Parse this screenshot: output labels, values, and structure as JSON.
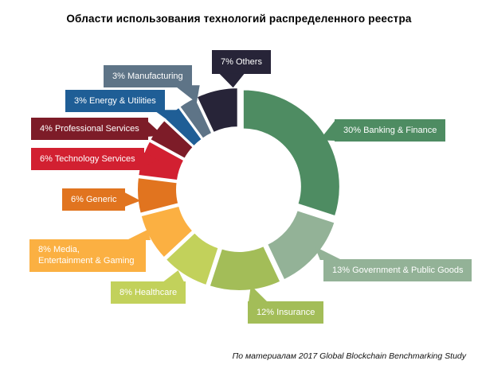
{
  "chart_data": {
    "type": "pie",
    "donut": true,
    "title": "Области использования технологий распределенного реестра",
    "source_note": "По материалам 2017 Global Blockchain Benchmarking Study",
    "unit": "percent",
    "legend_position": "callouts",
    "callout_text_color": "#ffffff",
    "slices": [
      {
        "key": "banking",
        "label": "Banking & Finance",
        "pct": 30,
        "color": "#4e8c62",
        "display": "30% Banking & Finance"
      },
      {
        "key": "government",
        "label": "Government & Public Goods",
        "pct": 13,
        "color": "#93b297",
        "display": "13% Government & Public Goods"
      },
      {
        "key": "insurance",
        "label": "Insurance",
        "pct": 12,
        "color": "#a3bd58",
        "display": "12% Insurance"
      },
      {
        "key": "healthcare",
        "label": "Healthcare",
        "pct": 8,
        "color": "#c2d15b",
        "display": "8% Healthcare"
      },
      {
        "key": "media",
        "label": "Media, Entertainment & Gaming",
        "pct": 8,
        "color": "#fbb042",
        "display": "8% Media,\nEntertainment & Gaming"
      },
      {
        "key": "generic",
        "label": "Generic",
        "pct": 6,
        "color": "#e1741f",
        "display": "6% Generic"
      },
      {
        "key": "technology",
        "label": "Technology Services",
        "pct": 6,
        "color": "#d22031",
        "display": "6% Technology Services"
      },
      {
        "key": "professional",
        "label": "Professional Services",
        "pct": 4,
        "color": "#7d1c28",
        "display": "4% Professional Services"
      },
      {
        "key": "energy",
        "label": "Energy & Utilities",
        "pct": 3,
        "color": "#1f5e96",
        "display": "3% Energy & Utilities"
      },
      {
        "key": "manufacturing",
        "label": "Manufacturing",
        "pct": 3,
        "color": "#5e7487",
        "display": "3% Manufacturing"
      },
      {
        "key": "others",
        "label": "Others",
        "pct": 7,
        "color": "#272438",
        "display": "7% Others"
      }
    ]
  }
}
